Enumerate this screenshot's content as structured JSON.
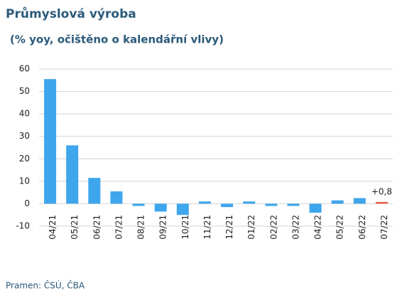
{
  "chart_data": {
    "type": "bar",
    "title": "Průmyslová výroba",
    "subtitle": "(% yoy, očištěno o kalendářní vlivy)",
    "source": "Pramen: ČSÚ, ČBA",
    "categories": [
      "04/21",
      "05/21",
      "06/21",
      "07/21",
      "08/21",
      "09/21",
      "10/21",
      "11/21",
      "12/21",
      "01/22",
      "02/22",
      "03/22",
      "04/22",
      "05/22",
      "06/22",
      "07/22"
    ],
    "values": [
      55.5,
      26,
      11.5,
      5.5,
      -1,
      -3.5,
      -5,
      1,
      -1.5,
      1,
      -1,
      -1,
      -4,
      1.5,
      2.5,
      0.8
    ],
    "value_labels": [
      null,
      null,
      null,
      null,
      null,
      null,
      null,
      null,
      null,
      null,
      null,
      null,
      null,
      null,
      null,
      "+0,8"
    ],
    "colors": [
      "#3ea6ec",
      "#3ea6ec",
      "#3ea6ec",
      "#3ea6ec",
      "#3ea6ec",
      "#3ea6ec",
      "#3ea6ec",
      "#3ea6ec",
      "#3ea6ec",
      "#3ea6ec",
      "#3ea6ec",
      "#3ea6ec",
      "#3ea6ec",
      "#3ea6ec",
      "#3ea6ec",
      "#e8604c"
    ],
    "ylim": [
      -10,
      60
    ],
    "yticks": [
      -10,
      0,
      10,
      20,
      30,
      40,
      50,
      60
    ],
    "grid": true
  }
}
